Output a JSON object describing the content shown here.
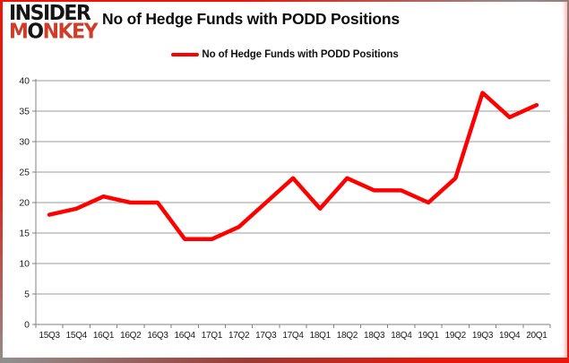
{
  "header": {
    "logo_line1": "INSIDER",
    "logo_line2_parts": [
      {
        "t": "M",
        "c": "#cf3c28"
      },
      {
        "t": "O",
        "c": "#151515"
      },
      {
        "t": "NKEY",
        "c": "#cf3c28"
      }
    ],
    "title": "No of Hedge Funds with PODD Positions"
  },
  "legend": {
    "label": "No of Hedge Funds with PODD Positions",
    "color": "#fe0000"
  },
  "chart_data": {
    "type": "line",
    "title": "No of Hedge Funds with PODD Positions",
    "categories": [
      "15Q3",
      "15Q4",
      "16Q1",
      "16Q2",
      "16Q3",
      "16Q4",
      "17Q1",
      "17Q2",
      "17Q3",
      "17Q4",
      "18Q1",
      "18Q2",
      "18Q3",
      "18Q4",
      "19Q1",
      "19Q2",
      "19Q3",
      "19Q4",
      "20Q1"
    ],
    "series": [
      {
        "name": "No of Hedge Funds with PODD Positions",
        "color": "#fe0000",
        "values": [
          18,
          19,
          21,
          20,
          20,
          14,
          14,
          16,
          20,
          24,
          19,
          24,
          22,
          22,
          20,
          24,
          38,
          34,
          36
        ]
      }
    ],
    "ylim": [
      0,
      40
    ],
    "ytick_step": 5,
    "yticks": [
      0,
      5,
      10,
      15,
      20,
      25,
      30,
      35,
      40
    ],
    "grid": true,
    "legend_position": "top-center",
    "xlabel": "",
    "ylabel": ""
  },
  "colors": {
    "grid": "#9b9b9b",
    "axis": "#808080",
    "tick_text": "#1a1a1a",
    "line": "#fe0000",
    "border_red": "#e8160c",
    "border_gray": "#8f8f8f"
  }
}
